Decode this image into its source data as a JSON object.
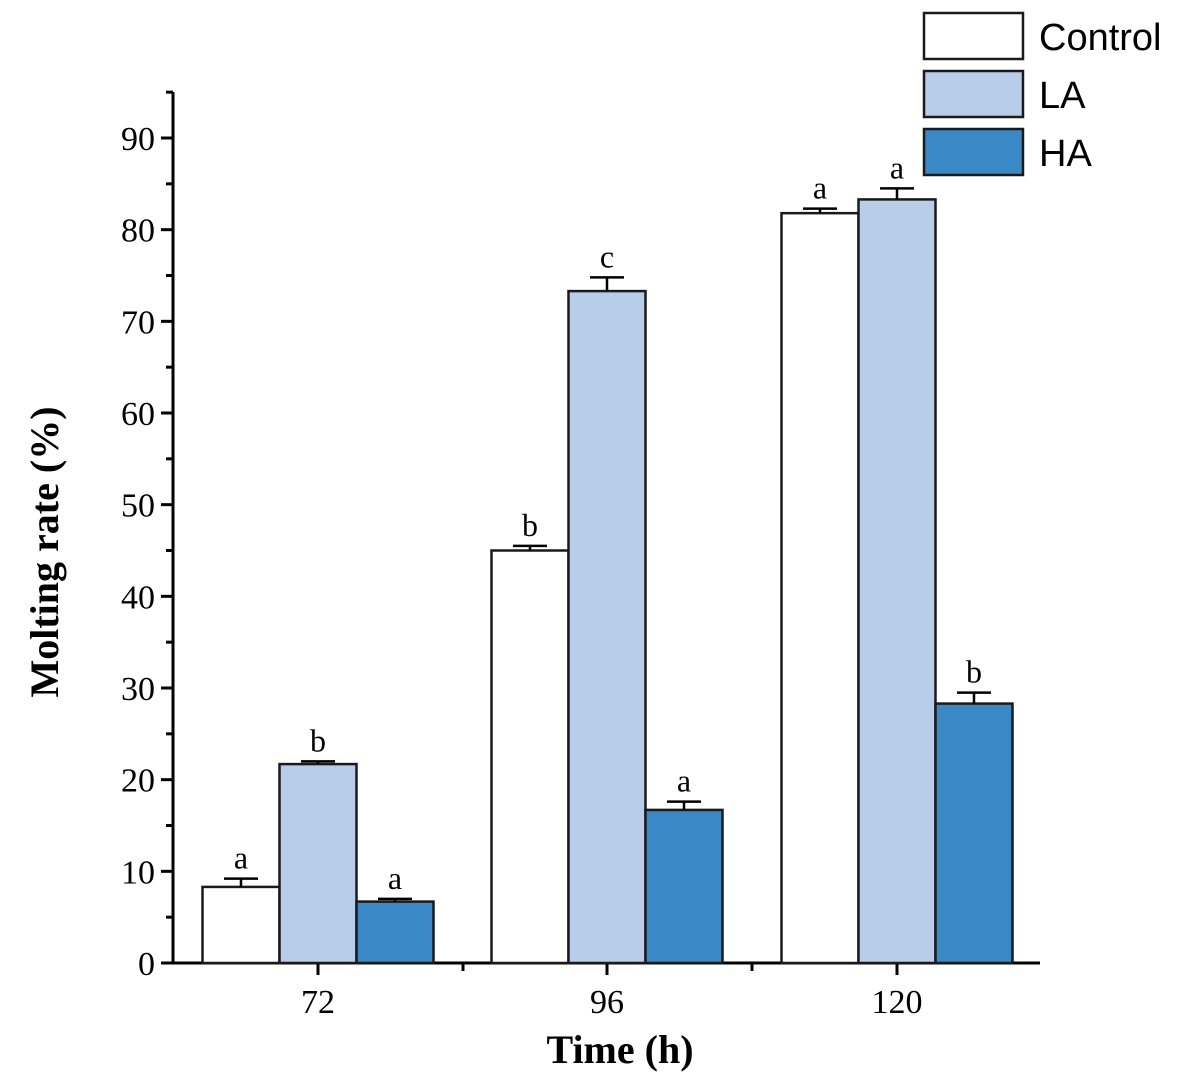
{
  "chart_data": {
    "type": "bar",
    "title": "",
    "xlabel": "Time (h)",
    "ylabel": "Molting rate (%)",
    "ylim": [
      0,
      95
    ],
    "yticks": [
      0,
      10,
      20,
      30,
      40,
      50,
      60,
      70,
      80,
      90
    ],
    "categories": [
      "72",
      "96",
      "120"
    ],
    "legend_position": "top-right",
    "series": [
      {
        "name": "Control",
        "color": "#ffffff",
        "values": [
          8.3,
          45.0,
          81.8
        ],
        "errors": [
          0.9,
          0.5,
          0.5
        ],
        "labels": [
          "a",
          "b",
          "a"
        ]
      },
      {
        "name": "LA",
        "color": "#b8cde9",
        "values": [
          21.7,
          73.3,
          83.3
        ],
        "errors": [
          0.3,
          1.5,
          1.2
        ],
        "labels": [
          "b",
          "c",
          "a"
        ]
      },
      {
        "name": "HA",
        "color": "#3a88c6",
        "values": [
          6.7,
          16.7,
          28.3
        ],
        "errors": [
          0.3,
          0.9,
          1.2
        ],
        "labels": [
          "a",
          "a",
          "b"
        ]
      }
    ]
  }
}
